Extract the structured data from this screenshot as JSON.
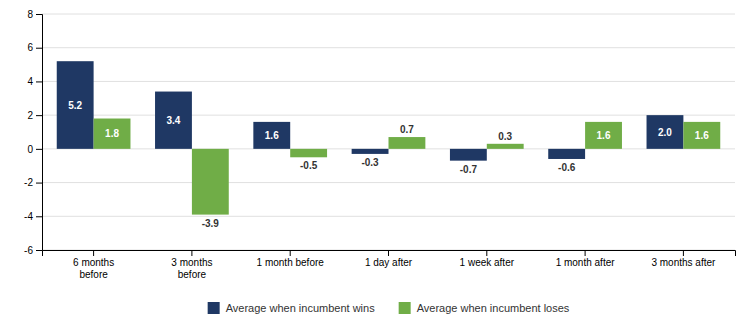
{
  "chart_data": {
    "type": "bar",
    "categories": [
      "6 months\nbefore",
      "3 months\nbefore",
      "1 month before",
      "1 day after",
      "1 week after",
      "1 month after",
      "3 months after"
    ],
    "series": [
      {
        "name": "Average when incumbent wins",
        "color": "#1f3864",
        "values": [
          5.2,
          3.4,
          1.6,
          -0.3,
          -0.7,
          -0.6,
          2.0
        ],
        "value_labels": [
          "5.2",
          "3.4",
          "1.6",
          "-0.3",
          "-0.7",
          "-0.6",
          "2.0"
        ]
      },
      {
        "name": "Average when incumbent loses",
        "color": "#70ad47",
        "values": [
          1.8,
          -3.9,
          -0.5,
          0.7,
          0.3,
          1.6,
          1.6
        ],
        "value_labels": [
          "1.8",
          "-3.9",
          "-0.5",
          "0.7",
          "0.3",
          "1.6",
          "1.6"
        ]
      }
    ],
    "ylim": [
      -6,
      8
    ],
    "yticks": [
      -6,
      -4,
      -2,
      0,
      2,
      4,
      6,
      8
    ],
    "grid": true,
    "legend": "bottom",
    "data_labels": true
  }
}
